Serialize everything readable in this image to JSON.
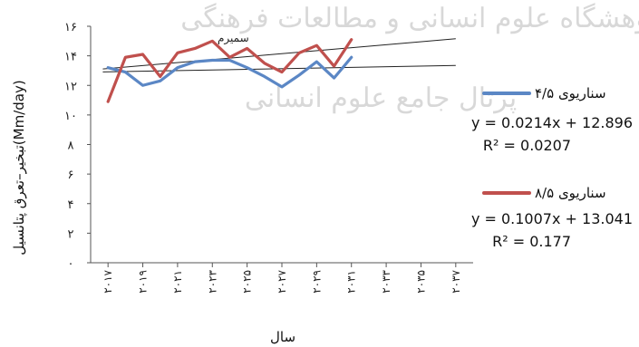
{
  "chart_data": {
    "type": "line",
    "xlabel": "سال",
    "ylabel": "تبخیر–تعرق پتانسیل(Mm/day)",
    "ylim": [
      0,
      16
    ],
    "y_ticks": [
      "۰",
      "۲",
      "۴",
      "۶",
      "۸",
      "۱۰",
      "۱۲",
      "۱۴",
      "۱۶"
    ],
    "y_tick_values": [
      0,
      2,
      4,
      6,
      8,
      10,
      12,
      14,
      16
    ],
    "x_tick_labels": [
      "۲۰۱۷",
      "۲۰۱۹",
      "۲۰۲۱",
      "۲۰۲۳",
      "۲۰۲۵",
      "۲۰۲۷",
      "۲۰۲۹",
      "۲۰۳۱",
      "۲۰۳۳",
      "۲۰۳۵",
      "۲۰۳۷"
    ],
    "x_tick_years": [
      2017,
      2019,
      2021,
      2023,
      2025,
      2027,
      2029,
      2031,
      2033,
      2035,
      2037
    ],
    "xlim": [
      2016,
      2038
    ],
    "annotation": "سمیرم",
    "series": [
      {
        "name": "سناریوی ۴/۵",
        "color": "#5b87c5",
        "x": [
          2017,
          2018,
          2019,
          2020,
          2021,
          2022,
          2023,
          2024,
          2025,
          2026,
          2027,
          2028,
          2029,
          2030,
          2031
        ],
        "values": [
          13.2,
          12.9,
          12.0,
          12.3,
          13.2,
          13.6,
          13.7,
          13.7,
          13.2,
          12.6,
          11.9,
          12.7,
          13.6,
          12.5,
          13.9
        ],
        "trendline": {
          "equation": "y = 0.0214x + 12.896",
          "r2": "R² = 0.0207",
          "slope": 0.0214,
          "intercept": 12.896
        }
      },
      {
        "name": "سناریوی ۸/۵",
        "color": "#c0504d",
        "x": [
          2017,
          2018,
          2019,
          2020,
          2021,
          2022,
          2023,
          2024,
          2025,
          2026,
          2027,
          2028,
          2029,
          2030,
          2031
        ],
        "values": [
          10.9,
          13.9,
          14.1,
          12.6,
          14.2,
          14.5,
          15.0,
          13.9,
          14.5,
          13.5,
          12.9,
          14.2,
          14.7,
          13.3,
          15.1
        ],
        "trendline": {
          "equation": "y = 0.1007x + 13.041",
          "r2": "R² = 0.177",
          "slope": 0.1007,
          "intercept": 13.041
        }
      }
    ]
  }
}
